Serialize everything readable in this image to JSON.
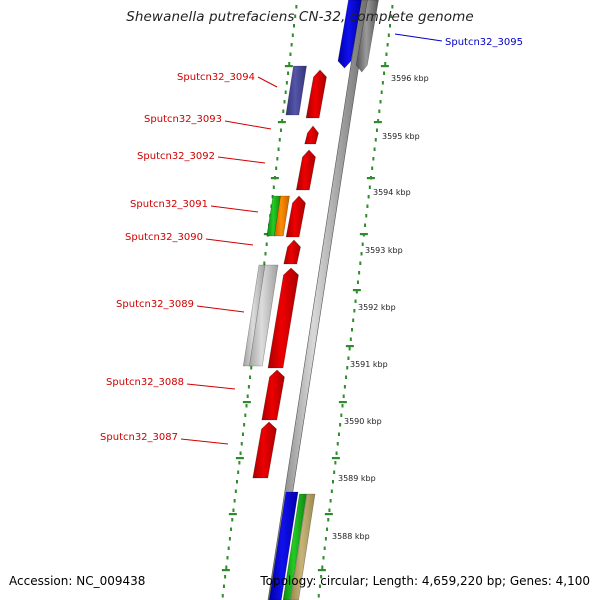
{
  "title": "Shewanella putrefaciens CN-32, complete genome",
  "footer": {
    "accession_label": "Accession:",
    "accession": "NC_009438",
    "topology_label": "Topology:",
    "topology": "circular",
    "length_label": "Length:",
    "length": "4,659,220 bp",
    "genes_label": "Genes:",
    "genes": "4,100"
  },
  "colors": {
    "backbone": "#909090",
    "tick_dots": "#2e8b2e",
    "label_primary": "#d00000",
    "label_secondary": "#0000c8",
    "gene_red": "#ee0000",
    "gene_blue": "#1010ee",
    "gene_navy": "#5555aa",
    "gene_green": "#22cc22",
    "gene_orange": "#ff8c00",
    "gene_gray": "#c4c4c4",
    "gene_darkgray": "#808080",
    "gene_tan": "#c8b478"
  },
  "chart_data": {
    "type": "genome-map",
    "title": "Shewanella putrefaciens CN-32, complete genome",
    "scale_unit": "kbp",
    "scale_labels": [
      "3596 kbp",
      "3595 kbp",
      "3594 kbp",
      "3593 kbp",
      "3592 kbp",
      "3591 kbp",
      "3590 kbp",
      "3589 kbp",
      "3588 kbp"
    ],
    "gene_labels": [
      {
        "name": "Sputcn32_3095",
        "color": "blue"
      },
      {
        "name": "Sputcn32_3094",
        "color": "red"
      },
      {
        "name": "Sputcn32_3093",
        "color": "red"
      },
      {
        "name": "Sputcn32_3092",
        "color": "red"
      },
      {
        "name": "Sputcn32_3091",
        "color": "red"
      },
      {
        "name": "Sputcn32_3090",
        "color": "red"
      },
      {
        "name": "Sputcn32_3089",
        "color": "red"
      },
      {
        "name": "Sputcn32_3088",
        "color": "red"
      },
      {
        "name": "Sputcn32_3087",
        "color": "red"
      }
    ]
  }
}
